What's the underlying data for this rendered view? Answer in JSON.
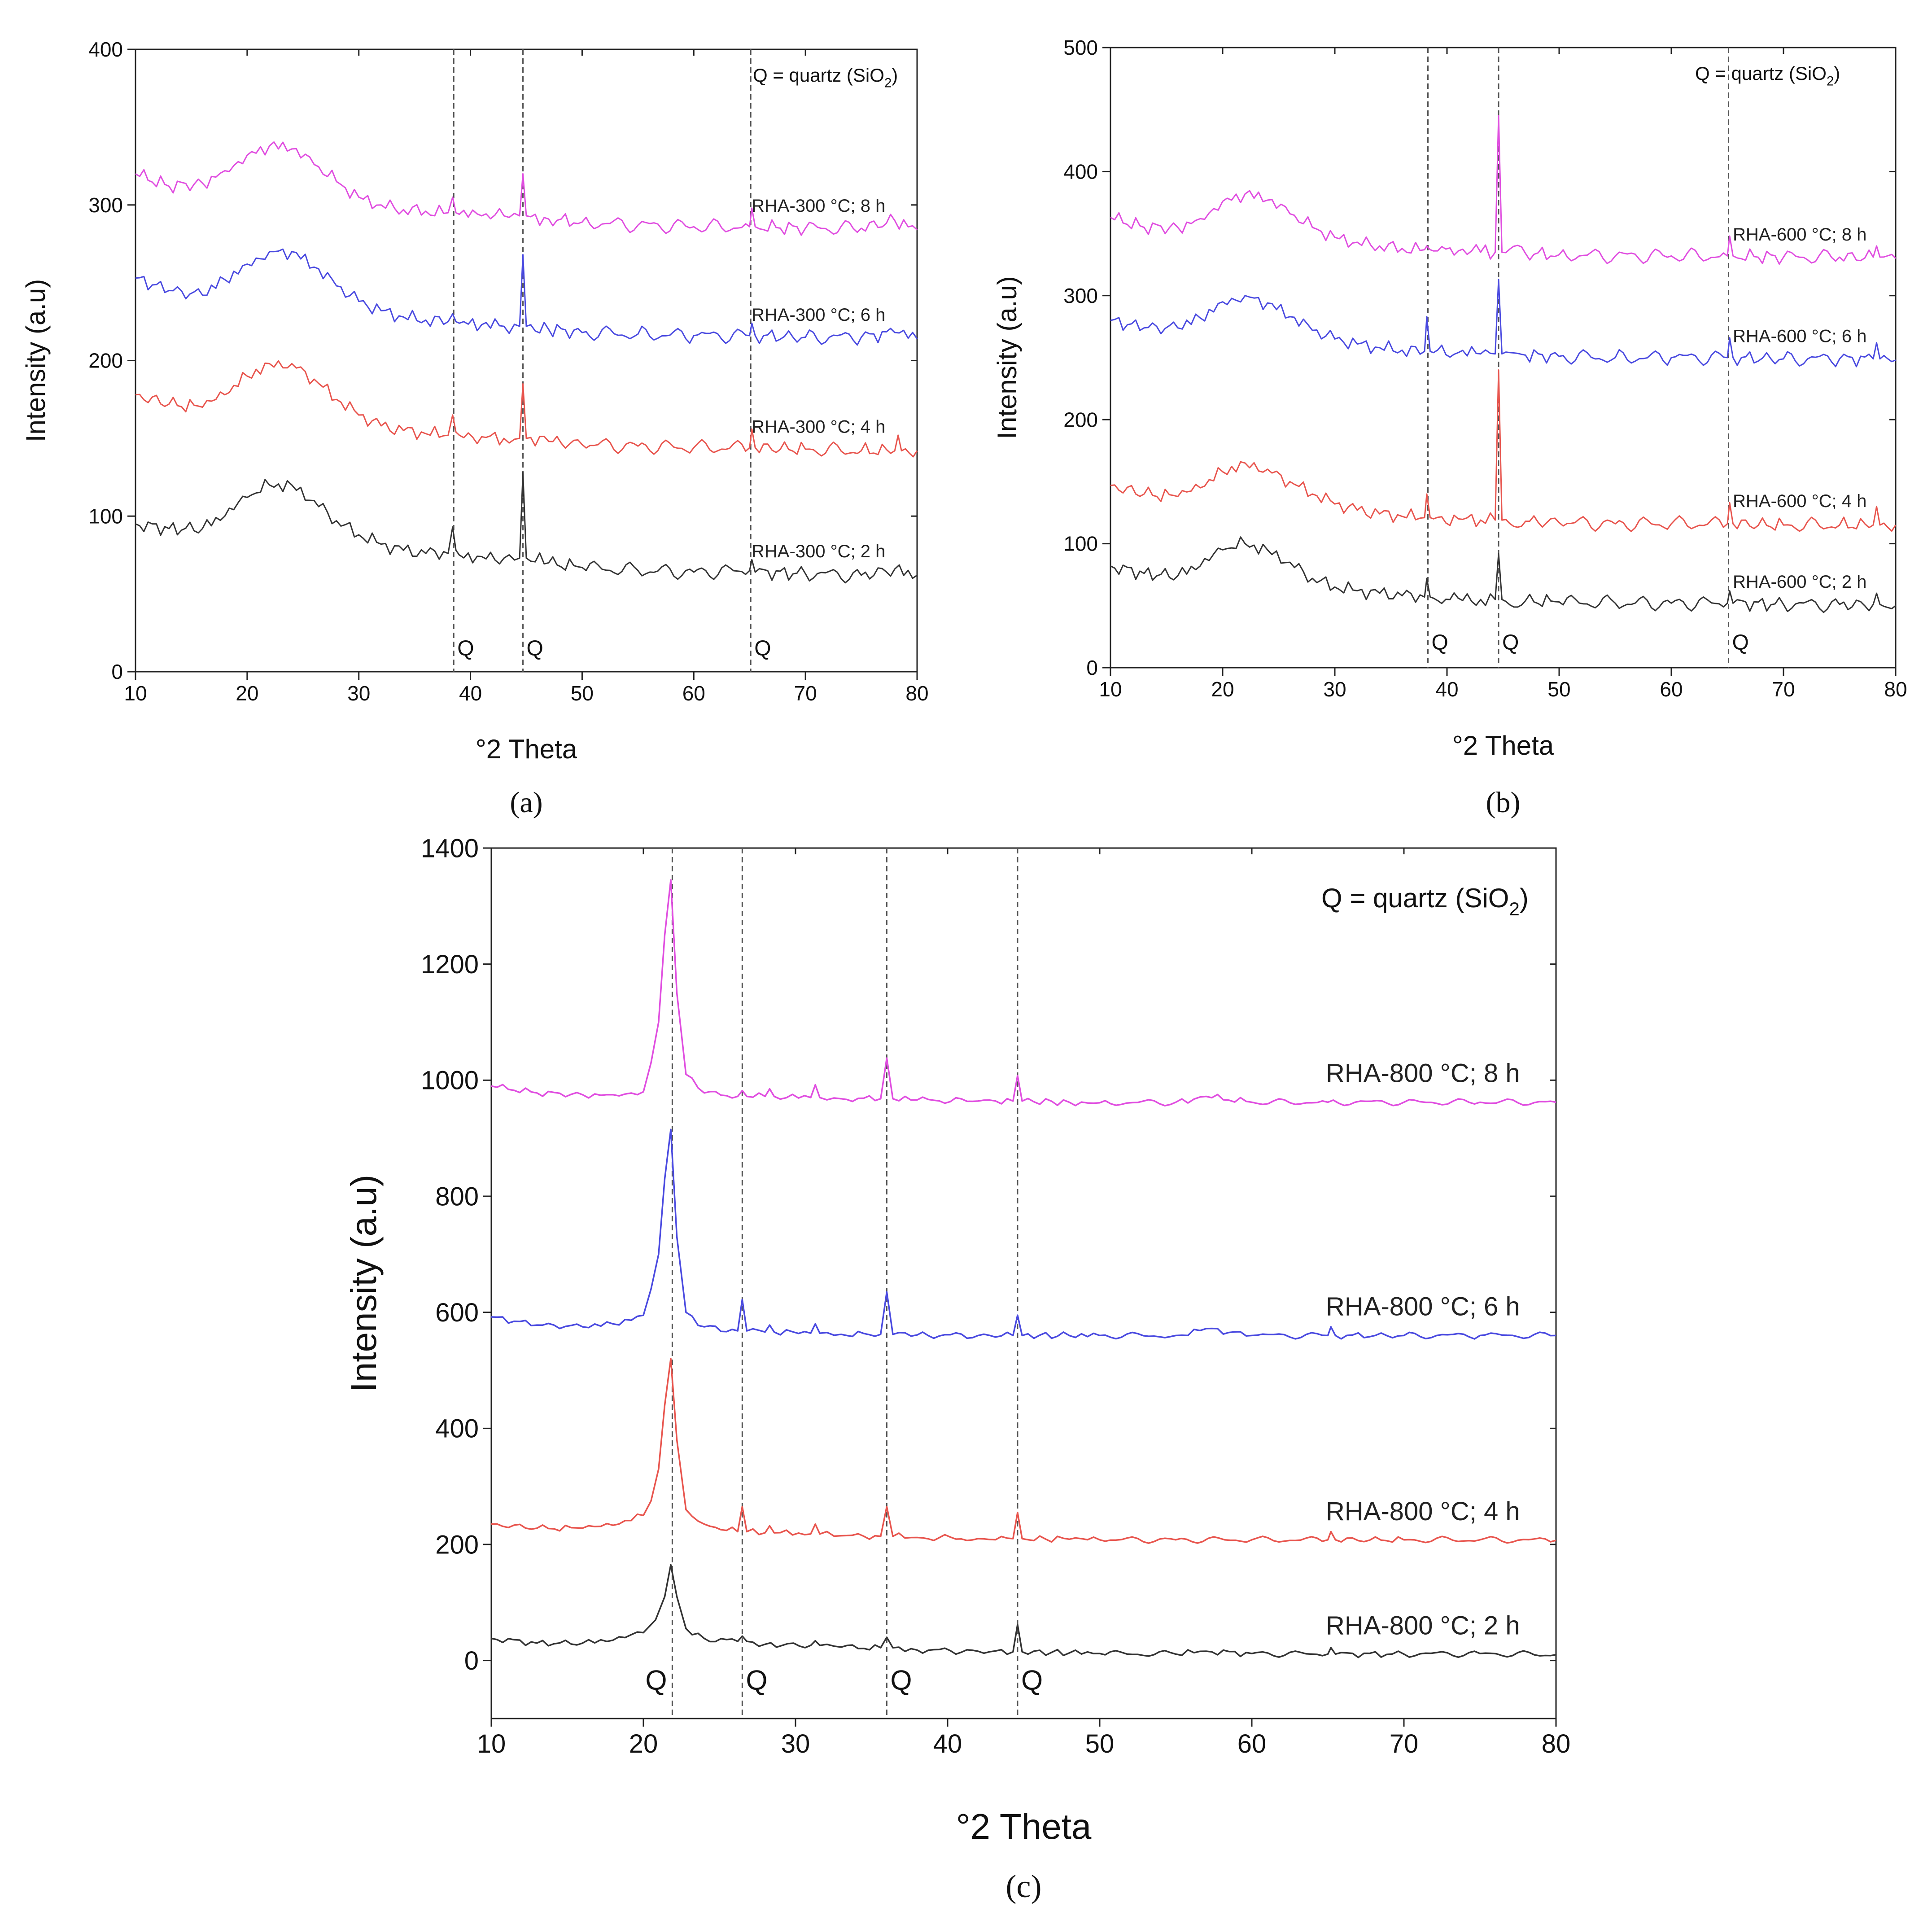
{
  "chart_data": [
    {
      "panel_label": "(a)",
      "type": "line",
      "xlabel": "°2 Theta",
      "ylabel": "Intensity (a.u)",
      "xlim": [
        10,
        80
      ],
      "ylim": [
        0,
        400
      ],
      "xticks": [
        10,
        20,
        30,
        40,
        50,
        60,
        70,
        80
      ],
      "yticks": [
        0,
        100,
        200,
        300,
        400
      ],
      "legend_text": "Q = quartz (SiO",
      "legend_sub": "2",
      "legend_close": ")",
      "q_lines": [
        38.5,
        44.7,
        65.1
      ],
      "q_label": "Q",
      "series": [
        {
          "name": "RHA-300 °C; 2 h",
          "color": "#333333",
          "x": [
            10,
            13,
            16,
            18,
            20,
            22,
            24,
            26,
            28,
            30,
            32,
            34,
            36,
            38,
            38.4,
            38.7,
            39,
            41,
            43,
            44.4,
            44.7,
            45,
            47,
            50,
            55,
            60,
            65,
            65.2,
            65.5,
            70,
            75,
            78,
            80
          ],
          "y": [
            95,
            92,
            92,
            100,
            112,
            120,
            120,
            110,
            97,
            88,
            82,
            78,
            76,
            76,
            93,
            78,
            75,
            74,
            73,
            73,
            128,
            73,
            70,
            67,
            65,
            64,
            65,
            72,
            64,
            63,
            62,
            66,
            62
          ]
        },
        {
          "name": "RHA-300 °C; 4 h",
          "color": "#e8554e",
          "x": [
            10,
            13,
            16,
            18,
            20,
            22,
            24,
            26,
            28,
            30,
            32,
            34,
            36,
            38,
            38.4,
            38.7,
            39,
            41,
            43,
            44.4,
            44.7,
            45,
            47,
            50,
            55,
            60,
            65,
            65.2,
            65.5,
            70,
            75,
            78,
            78.3,
            78.6,
            80
          ],
          "y": [
            178,
            172,
            170,
            178,
            190,
            198,
            198,
            188,
            175,
            165,
            158,
            155,
            153,
            152,
            165,
            154,
            152,
            151,
            150,
            150,
            185,
            150,
            148,
            146,
            145,
            144,
            144,
            156,
            144,
            143,
            142,
            142,
            152,
            142,
            142
          ]
        },
        {
          "name": "RHA-300 °C; 6 h",
          "color": "#4a4ae0",
          "x": [
            10,
            13,
            16,
            18,
            20,
            22,
            24,
            26,
            28,
            30,
            32,
            34,
            36,
            38,
            38.4,
            38.7,
            39,
            41,
            43,
            44.4,
            44.7,
            45,
            47,
            50,
            55,
            60,
            65,
            65.2,
            65.5,
            70,
            75,
            78,
            80
          ],
          "y": [
            253,
            245,
            242,
            252,
            262,
            270,
            270,
            260,
            248,
            238,
            232,
            228,
            226,
            225,
            230,
            225,
            224,
            223,
            222,
            222,
            268,
            222,
            220,
            218,
            217,
            216,
            216,
            224,
            216,
            215,
            215,
            218,
            214
          ]
        },
        {
          "name": "RHA-300 °C; 8 h",
          "color": "#e04ee0",
          "x": [
            10,
            13,
            16,
            18,
            20,
            22,
            24,
            26,
            28,
            30,
            32,
            34,
            36,
            38,
            38.4,
            38.7,
            39,
            41,
            43,
            44.4,
            44.7,
            45,
            47,
            50,
            55,
            60,
            65,
            65.2,
            65.5,
            70,
            75,
            78,
            80
          ],
          "y": [
            320,
            312,
            314,
            322,
            332,
            338,
            336,
            326,
            315,
            305,
            300,
            297,
            296,
            295,
            305,
            295,
            294,
            293,
            293,
            293,
            320,
            293,
            291,
            289,
            287,
            286,
            286,
            298,
            286,
            285,
            285,
            290,
            284
          ]
        }
      ]
    },
    {
      "panel_label": "(b)",
      "type": "line",
      "xlabel": "°2 Theta",
      "ylabel": "Intensity (a.u)",
      "xlim": [
        10,
        80
      ],
      "ylim": [
        0,
        500
      ],
      "xticks": [
        10,
        20,
        30,
        40,
        50,
        60,
        70,
        80
      ],
      "yticks": [
        0,
        100,
        200,
        300,
        400,
        500
      ],
      "legend_text": "Q = quartz (SiO",
      "legend_sub": "2",
      "legend_close": ")",
      "q_lines": [
        38.3,
        44.6,
        65.1
      ],
      "q_label": "Q",
      "series": [
        {
          "name": "RHA-600 °C; 2 h",
          "color": "#333333",
          "x": [
            10,
            13,
            16,
            18,
            20,
            22,
            24,
            26,
            28,
            30,
            32,
            34,
            36,
            38,
            38.2,
            38.5,
            38.8,
            41,
            43,
            44.3,
            44.6,
            44.9,
            47,
            50,
            55,
            60,
            65,
            65.2,
            65.5,
            70,
            75,
            78,
            78.3,
            78.6,
            80
          ],
          "y": [
            82,
            76,
            74,
            82,
            95,
            100,
            95,
            85,
            72,
            65,
            62,
            60,
            58,
            57,
            72,
            57,
            56,
            56,
            55,
            55,
            92,
            55,
            54,
            53,
            52,
            52,
            52,
            62,
            52,
            51,
            51,
            51,
            60,
            51,
            50
          ]
        },
        {
          "name": "RHA-600 °C; 4 h",
          "color": "#e8554e",
          "x": [
            10,
            13,
            16,
            18,
            20,
            22,
            24,
            26,
            28,
            30,
            32,
            34,
            36,
            38,
            38.2,
            38.5,
            38.8,
            41,
            43,
            44.3,
            44.6,
            44.9,
            47,
            50,
            55,
            60,
            65,
            65.2,
            65.5,
            70,
            75,
            78,
            78.3,
            78.6,
            80
          ],
          "y": [
            147,
            140,
            138,
            145,
            158,
            165,
            160,
            150,
            140,
            132,
            127,
            124,
            122,
            121,
            140,
            121,
            120,
            120,
            119,
            119,
            240,
            119,
            118,
            117,
            116,
            116,
            116,
            133,
            116,
            115,
            115,
            115,
            130,
            115,
            115
          ]
        },
        {
          "name": "RHA-600 °C; 6 h",
          "color": "#4a4ae0",
          "x": [
            10,
            13,
            16,
            18,
            20,
            22,
            24,
            26,
            28,
            30,
            32,
            34,
            36,
            38,
            38.2,
            38.5,
            38.8,
            41,
            43,
            44.3,
            44.6,
            44.9,
            47,
            50,
            55,
            60,
            65,
            65.2,
            65.5,
            70,
            75,
            78,
            78.3,
            78.6,
            80
          ],
          "y": [
            280,
            274,
            274,
            282,
            295,
            300,
            294,
            283,
            272,
            265,
            261,
            258,
            256,
            255,
            283,
            255,
            254,
            254,
            253,
            253,
            313,
            253,
            252,
            251,
            250,
            250,
            250,
            266,
            250,
            249,
            249,
            249,
            262,
            249,
            248
          ]
        },
        {
          "name": "RHA-600 °C; 8 h",
          "color": "#e04ee0",
          "x": [
            10,
            13,
            16,
            18,
            20,
            22,
            24,
            26,
            28,
            30,
            32,
            34,
            36,
            38,
            38.2,
            38.5,
            38.8,
            41,
            43,
            44.3,
            44.6,
            44.9,
            47,
            50,
            55,
            60,
            65,
            65.2,
            65.5,
            70,
            75,
            78,
            78.3,
            78.6,
            80
          ],
          "y": [
            363,
            355,
            355,
            362,
            376,
            382,
            377,
            366,
            355,
            347,
            343,
            340,
            338,
            337,
            340,
            337,
            336,
            336,
            335,
            335,
            445,
            335,
            334,
            333,
            332,
            332,
            332,
            348,
            332,
            331,
            331,
            331,
            340,
            331,
            330
          ]
        }
      ]
    },
    {
      "panel_label": "(c)",
      "type": "line",
      "xlabel": "°2 Theta",
      "ylabel": "Intensity (a.u)",
      "xlim": [
        10,
        80
      ],
      "ylim": [
        -100,
        1400
      ],
      "xticks": [
        10,
        20,
        30,
        40,
        50,
        60,
        70,
        80
      ],
      "yticks": [
        0,
        200,
        400,
        600,
        800,
        1000,
        1200,
        1400
      ],
      "legend_text": "Q = quartz (SiO",
      "legend_sub": "2",
      "legend_close": ")",
      "q_lines": [
        21.9,
        26.5,
        36.0,
        44.6
      ],
      "q_label": "Q",
      "series": [
        {
          "name": "RHA-800 °C; 2 h",
          "color": "#333333",
          "x": [
            10,
            13,
            16,
            18,
            20,
            20.8,
            21.4,
            21.8,
            22.2,
            22.8,
            24,
            26.2,
            26.5,
            26.8,
            28,
            31,
            31.3,
            31.6,
            33,
            35.6,
            36,
            36.4,
            38,
            42,
            44.3,
            44.6,
            44.9,
            48,
            50,
            55,
            57,
            60,
            65,
            65.2,
            65.5,
            70,
            75,
            80
          ],
          "y": [
            38,
            30,
            30,
            35,
            48,
            70,
            110,
            165,
            110,
            55,
            38,
            33,
            42,
            33,
            28,
            26,
            34,
            26,
            23,
            22,
            40,
            22,
            18,
            16,
            15,
            62,
            15,
            13,
            12,
            11,
            16,
            12,
            11,
            22,
            11,
            11,
            12,
            10
          ]
        },
        {
          "name": "RHA-800 °C; 4 h",
          "color": "#e8554e",
          "x": [
            10,
            13,
            16,
            18,
            20,
            20.5,
            21,
            21.4,
            21.8,
            22.2,
            22.8,
            24,
            26.2,
            26.5,
            26.8,
            28,
            28.3,
            28.6,
            31,
            31.3,
            31.6,
            33,
            35.6,
            36,
            36.4,
            38,
            42,
            44.3,
            44.6,
            44.9,
            48,
            50,
            55,
            60,
            65,
            65.2,
            65.5,
            70,
            75,
            80
          ],
          "y": [
            235,
            228,
            228,
            233,
            250,
            275,
            330,
            440,
            520,
            380,
            260,
            235,
            222,
            265,
            222,
            220,
            232,
            220,
            218,
            235,
            218,
            215,
            214,
            265,
            214,
            212,
            210,
            210,
            255,
            210,
            209,
            208,
            208,
            208,
            208,
            222,
            208,
            208,
            208,
            207
          ]
        },
        {
          "name": "RHA-800 °C; 6 h",
          "color": "#4a4ae0",
          "x": [
            10,
            13,
            16,
            18,
            20,
            20.5,
            21,
            21.4,
            21.8,
            22.2,
            22.8,
            24,
            26.2,
            26.5,
            26.8,
            28,
            28.3,
            28.6,
            31,
            31.3,
            31.6,
            33,
            35.6,
            36,
            36.4,
            38,
            42,
            44.3,
            44.6,
            44.9,
            48,
            50,
            55,
            57,
            60,
            65,
            65.2,
            65.5,
            70,
            75,
            80
          ],
          "y": [
            592,
            578,
            575,
            580,
            595,
            640,
            700,
            830,
            915,
            730,
            600,
            575,
            568,
            622,
            568,
            566,
            578,
            566,
            564,
            580,
            564,
            562,
            562,
            635,
            562,
            561,
            560,
            560,
            595,
            560,
            560,
            560,
            560,
            572,
            560,
            560,
            575,
            560,
            560,
            560,
            560
          ]
        },
        {
          "name": "RHA-800 °C; 8 h",
          "color": "#e04ee0",
          "x": [
            10,
            13,
            16,
            18,
            20,
            20.5,
            21,
            21.4,
            21.8,
            22.2,
            22.8,
            24,
            26.2,
            26.5,
            26.8,
            28,
            28.3,
            28.6,
            31,
            31.3,
            31.6,
            33,
            35.6,
            36,
            36.4,
            38,
            42,
            44.3,
            44.6,
            44.9,
            48,
            50,
            55,
            57,
            60,
            65,
            70,
            75,
            80
          ],
          "y": [
            990,
            978,
            975,
            975,
            980,
            1030,
            1100,
            1250,
            1345,
            1150,
            1010,
            978,
            972,
            982,
            972,
            972,
            985,
            972,
            970,
            992,
            970,
            968,
            968,
            1038,
            968,
            966,
            964,
            964,
            1008,
            964,
            962,
            961,
            962,
            972,
            962,
            962,
            962,
            962,
            962
          ]
        }
      ]
    }
  ]
}
